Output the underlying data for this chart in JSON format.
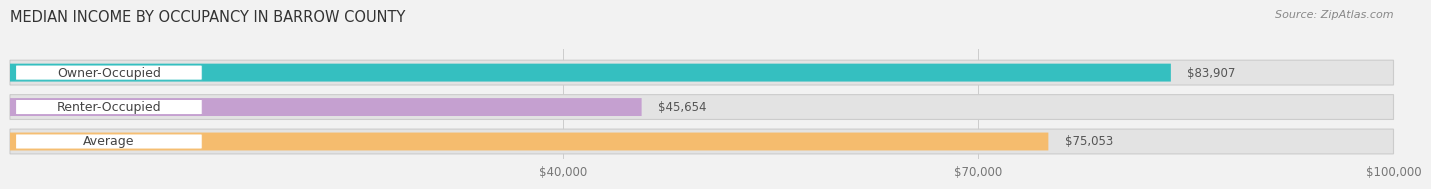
{
  "title": "MEDIAN INCOME BY OCCUPANCY IN BARROW COUNTY",
  "source": "Source: ZipAtlas.com",
  "categories": [
    "Owner-Occupied",
    "Renter-Occupied",
    "Average"
  ],
  "values": [
    83907,
    45654,
    75053
  ],
  "bar_colors": [
    "#35bfc0",
    "#c5a0d0",
    "#f5bc6e"
  ],
  "value_labels": [
    "$83,907",
    "$45,654",
    "$75,053"
  ],
  "xlim": [
    0,
    100000
  ],
  "xticks": [
    40000,
    70000,
    100000
  ],
  "xtick_labels": [
    "$40,000",
    "$70,000",
    "$100,000"
  ],
  "background_color": "#f2f2f2",
  "bar_bg_color": "#e3e3e3",
  "title_fontsize": 10.5,
  "source_fontsize": 8,
  "label_fontsize": 9,
  "value_fontsize": 8.5,
  "tick_fontsize": 8.5
}
